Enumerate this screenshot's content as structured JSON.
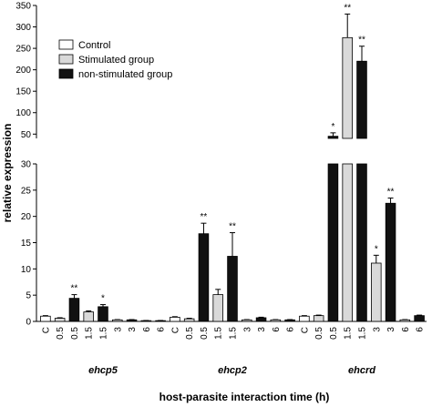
{
  "chart_data": {
    "type": "bar",
    "ylabel": "relative expression",
    "xlabel": "host-parasite interaction time (h)",
    "y_axis_break": {
      "lower_range": [
        0,
        30
      ],
      "upper_range": [
        40,
        350
      ],
      "lower_ticks": [
        "0",
        "5",
        "10",
        "15",
        "20",
        "25",
        "30"
      ],
      "upper_ticks": [
        "50",
        "100",
        "150",
        "200",
        "250",
        "300",
        "350"
      ]
    },
    "legend": {
      "placement": "top-left",
      "items": [
        {
          "label": "Control",
          "color": "#ffffff"
        },
        {
          "label": "Stimulated group",
          "color": "#d9d9d9"
        },
        {
          "label": "non-stimulated group",
          "color": "#111111"
        }
      ]
    },
    "groups": [
      "ehcp5",
      "ehcp2",
      "ehcrd"
    ],
    "categories": [
      "C",
      "0.5",
      "0.5",
      "1.5",
      "1.5",
      "3",
      "3",
      "6",
      "6",
      "C",
      "0.5",
      "0.5",
      "1.5",
      "1.5",
      "3",
      "3",
      "6",
      "6",
      "C",
      "0.5",
      "0.5",
      "1.5",
      "1.5",
      "3",
      "3",
      "6",
      "6"
    ],
    "bars": [
      {
        "group": "ehcp5",
        "label": "C",
        "kind": "control",
        "value": 1.0,
        "error": 0.1,
        "sig": ""
      },
      {
        "group": "ehcp5",
        "label": "0.5",
        "kind": "stimulated",
        "value": 0.6,
        "error": 0.1,
        "sig": ""
      },
      {
        "group": "ehcp5",
        "label": "0.5",
        "kind": "non-stimulated",
        "value": 4.4,
        "error": 0.7,
        "sig": "**"
      },
      {
        "group": "ehcp5",
        "label": "1.5",
        "kind": "stimulated",
        "value": 1.8,
        "error": 0.2,
        "sig": ""
      },
      {
        "group": "ehcp5",
        "label": "1.5",
        "kind": "non-stimulated",
        "value": 2.8,
        "error": 0.4,
        "sig": "*"
      },
      {
        "group": "ehcp5",
        "label": "3",
        "kind": "stimulated",
        "value": 0.3,
        "error": 0.05,
        "sig": ""
      },
      {
        "group": "ehcp5",
        "label": "3",
        "kind": "non-stimulated",
        "value": 0.3,
        "error": 0.05,
        "sig": ""
      },
      {
        "group": "ehcp5",
        "label": "6",
        "kind": "stimulated",
        "value": 0.15,
        "error": 0.03,
        "sig": ""
      },
      {
        "group": "ehcp5",
        "label": "6",
        "kind": "non-stimulated",
        "value": 0.15,
        "error": 0.03,
        "sig": ""
      },
      {
        "group": "ehcp2",
        "label": "C",
        "kind": "control",
        "value": 0.8,
        "error": 0.1,
        "sig": ""
      },
      {
        "group": "ehcp2",
        "label": "0.5",
        "kind": "stimulated",
        "value": 0.5,
        "error": 0.1,
        "sig": ""
      },
      {
        "group": "ehcp2",
        "label": "0.5",
        "kind": "non-stimulated",
        "value": 16.7,
        "error": 2.0,
        "sig": "**"
      },
      {
        "group": "ehcp2",
        "label": "1.5",
        "kind": "stimulated",
        "value": 5.1,
        "error": 1.0,
        "sig": ""
      },
      {
        "group": "ehcp2",
        "label": "1.5",
        "kind": "non-stimulated",
        "value": 12.4,
        "error": 4.5,
        "sig": "**"
      },
      {
        "group": "ehcp2",
        "label": "3",
        "kind": "stimulated",
        "value": 0.3,
        "error": 0.05,
        "sig": ""
      },
      {
        "group": "ehcp2",
        "label": "3",
        "kind": "non-stimulated",
        "value": 0.7,
        "error": 0.1,
        "sig": ""
      },
      {
        "group": "ehcp2",
        "label": "6",
        "kind": "stimulated",
        "value": 0.3,
        "error": 0.05,
        "sig": ""
      },
      {
        "group": "ehcp2",
        "label": "6",
        "kind": "non-stimulated",
        "value": 0.3,
        "error": 0.05,
        "sig": ""
      },
      {
        "group": "ehcrd",
        "label": "C",
        "kind": "control",
        "value": 1.0,
        "error": 0.1,
        "sig": ""
      },
      {
        "group": "ehcrd",
        "label": "0.5",
        "kind": "stimulated",
        "value": 1.1,
        "error": 0.1,
        "sig": ""
      },
      {
        "group": "ehcrd",
        "label": "0.5",
        "kind": "non-stimulated",
        "value": 45,
        "error": 8,
        "sig": "*"
      },
      {
        "group": "ehcrd",
        "label": "1.5",
        "kind": "stimulated",
        "value": 275,
        "error": 55,
        "sig": "**"
      },
      {
        "group": "ehcrd",
        "label": "1.5",
        "kind": "non-stimulated",
        "value": 220,
        "error": 35,
        "sig": "**"
      },
      {
        "group": "ehcrd",
        "label": "3",
        "kind": "stimulated",
        "value": 11.1,
        "error": 1.5,
        "sig": "*"
      },
      {
        "group": "ehcrd",
        "label": "3",
        "kind": "non-stimulated",
        "value": 22.5,
        "error": 1.0,
        "sig": "**"
      },
      {
        "group": "ehcrd",
        "label": "6",
        "kind": "stimulated",
        "value": 0.3,
        "error": 0.05,
        "sig": ""
      },
      {
        "group": "ehcrd",
        "label": "6",
        "kind": "non-stimulated",
        "value": 1.1,
        "error": 0.1,
        "sig": ""
      }
    ]
  }
}
